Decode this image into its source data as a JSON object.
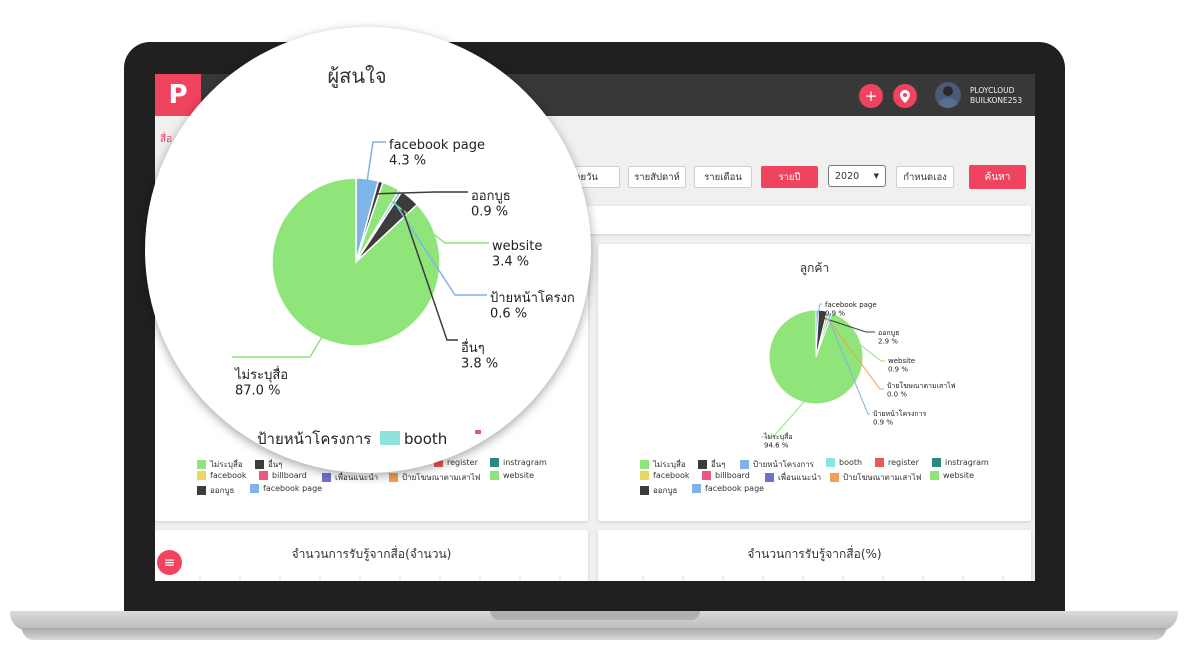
{
  "app": {
    "logo_letter": "P",
    "user_name": "PLOYCLOUD",
    "user_id": "BUILKONE253"
  },
  "icons": {
    "add": "plus-icon",
    "location": "map-pin-icon",
    "menu": "hamburger-menu-icon"
  },
  "breadcrumb": "สื่อ",
  "filters": {
    "daily": "รายวัน",
    "weekly": "รายสัปดาห์",
    "monthly": "รายเดือน",
    "yearly": "รายปี",
    "year_value": "2020",
    "custom": "กำหนดเอง",
    "search": "ค้นหา"
  },
  "colors": {
    "accent": "#f0435f",
    "topbar": "#383838"
  },
  "legend_items": [
    {
      "label": "ไม่ระบุสื่อ",
      "color": "#8fe47a"
    },
    {
      "label": "อื่นๆ",
      "color": "#3c3c3c"
    },
    {
      "label": "ป้ายหน้าโครงการ",
      "color": "#7eb4e8"
    },
    {
      "label": "booth",
      "color": "#8fe3dc"
    },
    {
      "label": "register",
      "color": "#e85a5a"
    },
    {
      "label": "instragram",
      "color": "#2a8a80"
    },
    {
      "label": "facebook",
      "color": "#e8d860"
    },
    {
      "label": "billboard",
      "color": "#e85a7f"
    },
    {
      "label": "เพื่อนแนะนำ",
      "color": "#7070d0"
    },
    {
      "label": "ป้ายโฆษณาตามเสาไฟ",
      "color": "#f0a050"
    },
    {
      "label": "website",
      "color": "#8fe47a"
    },
    {
      "label": "ออกบูธ",
      "color": "#3c3c3c"
    },
    {
      "label": "facebook page",
      "color": "#7eb4e8"
    }
  ],
  "lower_cards": {
    "left_title": "จำนวนการรับรู้จากสื่อ(จำนวน)",
    "right_title": "จำนวนการรับรู้จากสื่อ(%)"
  },
  "chart_data": [
    {
      "type": "pie",
      "title": "ผู้สนใจ",
      "slices": [
        {
          "label": "ไม่ระบุสื่อ",
          "value": 87.0,
          "display": "87.0 %",
          "color": "#8fe47a"
        },
        {
          "label": "facebook page",
          "value": 4.3,
          "display": "4.3 %",
          "color": "#7eb4e8"
        },
        {
          "label": "ออกบูธ",
          "value": 0.9,
          "display": "0.9 %",
          "color": "#3c3c3c"
        },
        {
          "label": "website",
          "value": 3.4,
          "display": "3.4 %",
          "color": "#8fe47a"
        },
        {
          "label": "ป้ายหน้าโครงก",
          "value": 0.6,
          "display": "0.6 %",
          "color": "#7eb4e8"
        },
        {
          "label": "อื่นๆ",
          "value": 3.8,
          "display": "3.8 %",
          "color": "#3c3c3c"
        }
      ],
      "legend_peek": [
        "ป้ายหน้าโครงการ",
        "booth"
      ]
    },
    {
      "type": "pie",
      "title": "ลูกค้า",
      "slices": [
        {
          "label": "ไม่ระบุสื่อ",
          "value": 94.6,
          "display": "94.6 %",
          "color": "#8fe47a"
        },
        {
          "label": "facebook page",
          "value": 0.9,
          "display": "0.9 %",
          "color": "#7eb4e8"
        },
        {
          "label": "ออกบูธ",
          "value": 2.9,
          "display": "2.9 %",
          "color": "#3c3c3c"
        },
        {
          "label": "website",
          "value": 0.9,
          "display": "0.9 %",
          "color": "#8fe47a"
        },
        {
          "label": "ป้ายโฆษณาตามเสาไฟ",
          "value": 0.0,
          "display": "0.0 %",
          "color": "#f0a050"
        },
        {
          "label": "ป้ายหน้าโครงการ",
          "value": 0.9,
          "display": "0.9 %",
          "color": "#7eb4e8"
        }
      ]
    }
  ]
}
